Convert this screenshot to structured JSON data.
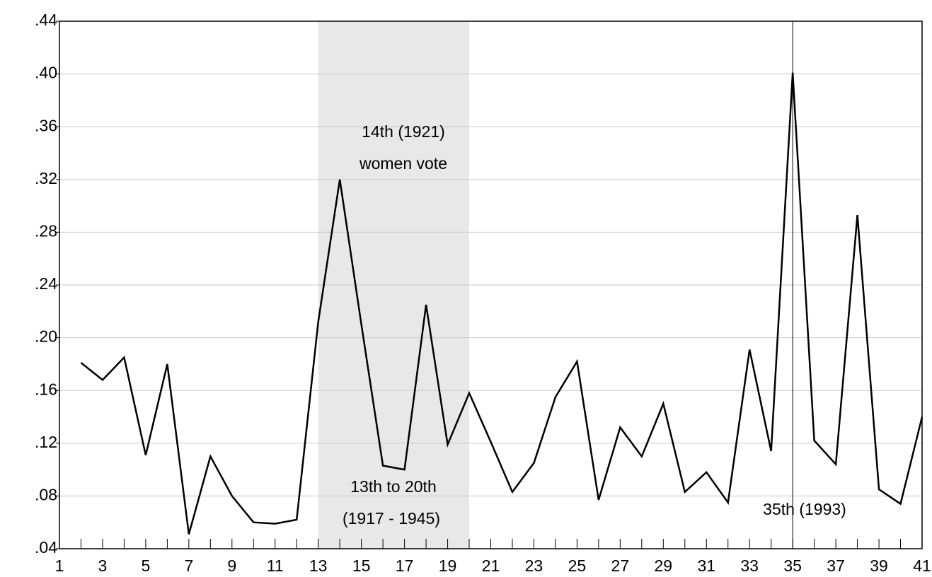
{
  "chart_data": {
    "type": "line",
    "x": [
      2,
      3,
      4,
      5,
      6,
      7,
      8,
      9,
      10,
      11,
      12,
      13,
      14,
      15,
      16,
      17,
      18,
      19,
      20,
      21,
      22,
      23,
      24,
      25,
      26,
      27,
      28,
      29,
      30,
      31,
      32,
      33,
      34,
      35,
      36,
      37,
      38,
      39,
      40,
      41
    ],
    "series": [
      {
        "color": "#000000",
        "values": [
          0.181,
          0.168,
          0.185,
          0.111,
          0.18,
          0.051,
          0.11,
          0.08,
          0.06,
          0.059,
          0.062,
          0.212,
          0.32,
          0.21,
          0.103,
          0.1,
          0.225,
          0.119,
          0.158,
          0.121,
          0.083,
          0.105,
          0.155,
          0.182,
          0.077,
          0.132,
          0.11,
          0.15,
          0.083,
          0.098,
          0.075,
          0.191,
          0.114,
          0.401,
          0.122,
          0.104,
          0.293,
          0.085,
          0.074,
          0.14
        ]
      }
    ],
    "xlim": [
      1,
      41
    ],
    "xticks": [
      1,
      3,
      5,
      7,
      9,
      11,
      13,
      15,
      17,
      19,
      21,
      23,
      25,
      27,
      29,
      31,
      33,
      35,
      37,
      39,
      41
    ],
    "xminorticks": [
      2,
      4,
      6,
      8,
      10,
      12,
      14,
      16,
      18,
      20,
      22,
      24,
      26,
      28,
      30,
      32,
      34,
      36,
      38,
      40
    ],
    "ylim": [
      0.04,
      0.44
    ],
    "yticks": [
      {
        "value": 0.04,
        "label": ".04"
      },
      {
        "value": 0.08,
        "label": ".08"
      },
      {
        "value": 0.12,
        "label": ".12"
      },
      {
        "value": 0.16,
        "label": ".16"
      },
      {
        "value": 0.2,
        "label": ".20"
      },
      {
        "value": 0.24,
        "label": ".24"
      },
      {
        "value": 0.28,
        "label": ".28"
      },
      {
        "value": 0.32,
        "label": ".32"
      },
      {
        "value": 0.36,
        "label": ".36"
      },
      {
        "value": 0.4,
        "label": ".40"
      },
      {
        "value": 0.44,
        "label": ".44"
      }
    ],
    "grid": true,
    "shade": {
      "x": [
        13,
        20
      ],
      "color": "#e8e8e8"
    },
    "vline": 35,
    "annotations": [
      "14th (1921)",
      "women vote",
      "13th to 20th",
      "(1917 - 1945)",
      "35th (1993)"
    ]
  }
}
